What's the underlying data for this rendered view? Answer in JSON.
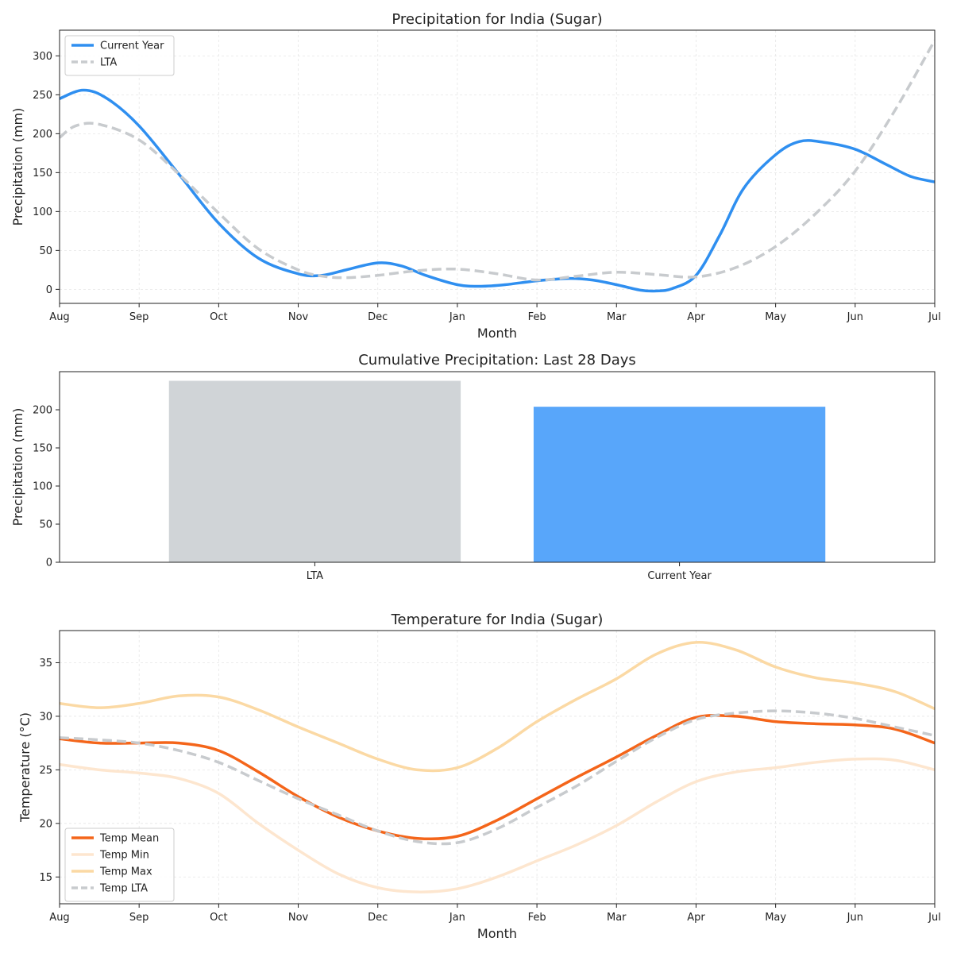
{
  "chart_data": [
    {
      "type": "line",
      "title": "Precipitation for India (Sugar)",
      "xlabel": "Month",
      "ylabel": "Precipitation (mm)",
      "ylim": [
        -18,
        333
      ],
      "yticks": [
        0,
        50,
        100,
        150,
        200,
        250,
        300
      ],
      "categories": [
        "Aug",
        "Sep",
        "Oct",
        "Nov",
        "Dec",
        "Jan",
        "Feb",
        "Mar",
        "Apr",
        "May",
        "Jun",
        "Jul"
      ],
      "grid": true,
      "legend_position": "top-left",
      "series": [
        {
          "name": "Current Year",
          "color": "#2f8ff0",
          "style": "solid",
          "x": [
            0,
            0.3,
            0.6,
            1,
            1.5,
            2,
            2.5,
            3,
            3.3,
            3.6,
            4,
            4.3,
            4.6,
            5,
            5.3,
            5.6,
            6,
            6.4,
            6.7,
            7,
            7.3,
            7.5,
            7.7,
            8,
            8.3,
            8.6,
            9,
            9.3,
            9.6,
            10,
            10.4,
            10.7,
            11
          ],
          "values": [
            245,
            256,
            245,
            210,
            148,
            85,
            40,
            20,
            18,
            25,
            34,
            30,
            18,
            6,
            4,
            6,
            11,
            14,
            12,
            6,
            -1,
            -2,
            1,
            18,
            70,
            130,
            173,
            190,
            189,
            180,
            160,
            145,
            138
          ]
        },
        {
          "name": "LTA",
          "color": "#c8cbce",
          "style": "dashed",
          "x": [
            0,
            0.2,
            0.5,
            1,
            1.5,
            2,
            2.5,
            3,
            3.3,
            3.6,
            4,
            4.5,
            5,
            5.5,
            6,
            6.5,
            7,
            7.5,
            8,
            8.5,
            9,
            9.5,
            10,
            10.5,
            11
          ],
          "values": [
            195,
            210,
            212,
            192,
            148,
            98,
            52,
            25,
            17,
            15,
            18,
            24,
            26,
            20,
            12,
            17,
            22,
            19,
            16,
            28,
            55,
            97,
            152,
            230,
            320
          ]
        }
      ]
    },
    {
      "type": "bar",
      "title": "Cumulative Precipitation: Last 28 Days",
      "xlabel": "",
      "ylabel": "Precipitation (mm)",
      "ylim": [
        0,
        250
      ],
      "yticks": [
        0,
        50,
        100,
        150,
        200
      ],
      "categories": [
        "LTA",
        "Current Year"
      ],
      "values": [
        238,
        204
      ],
      "colors": [
        "#d0d4d7",
        "#58a6fa"
      ],
      "grid": false
    },
    {
      "type": "line",
      "title": "Temperature for India (Sugar)",
      "xlabel": "Month",
      "ylabel": "Temperature (°C)",
      "ylim": [
        12.5,
        38
      ],
      "yticks": [
        15,
        20,
        25,
        30,
        35
      ],
      "categories": [
        "Aug",
        "Sep",
        "Oct",
        "Nov",
        "Dec",
        "Jan",
        "Feb",
        "Mar",
        "Apr",
        "May",
        "Jun",
        "Jul"
      ],
      "grid": true,
      "legend_position": "bottom-left",
      "series": [
        {
          "name": "Temp Mean",
          "color": "#f4651a",
          "style": "solid",
          "x": [
            0,
            0.5,
            1,
            1.5,
            2,
            2.5,
            3,
            3.5,
            4,
            4.5,
            5,
            5.5,
            6,
            6.5,
            7,
            7.5,
            8,
            8.5,
            9,
            9.5,
            10,
            10.5,
            11
          ],
          "values": [
            27.9,
            27.5,
            27.5,
            27.5,
            26.8,
            24.8,
            22.5,
            20.6,
            19.3,
            18.6,
            18.8,
            20.3,
            22.3,
            24.3,
            26.2,
            28.2,
            29.9,
            30.0,
            29.5,
            29.3,
            29.2,
            28.8,
            27.5
          ]
        },
        {
          "name": "Temp Min",
          "color": "#fde6cf",
          "style": "solid",
          "x": [
            0,
            0.5,
            1,
            1.5,
            2,
            2.5,
            3,
            3.5,
            4,
            4.5,
            5,
            5.5,
            6,
            6.5,
            7,
            7.5,
            8,
            8.5,
            9,
            9.5,
            10,
            10.5,
            11
          ],
          "values": [
            25.5,
            25.0,
            24.7,
            24.2,
            22.8,
            20.0,
            17.5,
            15.3,
            14.0,
            13.6,
            13.9,
            15.0,
            16.5,
            18.0,
            19.8,
            22.0,
            23.9,
            24.8,
            25.2,
            25.7,
            26.0,
            25.9,
            25.0
          ]
        },
        {
          "name": "Temp Max",
          "color": "#fbd9a4",
          "style": "solid",
          "x": [
            0,
            0.5,
            1,
            1.5,
            2,
            2.5,
            3,
            3.5,
            4,
            4.5,
            5,
            5.5,
            6,
            6.5,
            7,
            7.5,
            8,
            8.5,
            9,
            9.5,
            10,
            10.5,
            11
          ],
          "values": [
            31.2,
            30.8,
            31.2,
            31.9,
            31.8,
            30.6,
            29.0,
            27.5,
            26.0,
            25.0,
            25.2,
            27.0,
            29.5,
            31.6,
            33.5,
            35.8,
            36.9,
            36.2,
            34.6,
            33.6,
            33.1,
            32.3,
            30.7
          ]
        },
        {
          "name": "Temp LTA",
          "color": "#c8cbce",
          "style": "dashed",
          "x": [
            0,
            0.5,
            1,
            1.5,
            2,
            2.5,
            3,
            3.5,
            4,
            4.5,
            5,
            5.5,
            6,
            6.5,
            7,
            7.5,
            8,
            8.5,
            9,
            9.5,
            10,
            10.5,
            11
          ],
          "values": [
            28.0,
            27.8,
            27.5,
            26.8,
            25.7,
            24.0,
            22.3,
            20.8,
            19.3,
            18.3,
            18.2,
            19.5,
            21.5,
            23.5,
            25.8,
            28.0,
            29.7,
            30.3,
            30.5,
            30.3,
            29.8,
            29.0,
            28.2
          ]
        }
      ]
    }
  ]
}
